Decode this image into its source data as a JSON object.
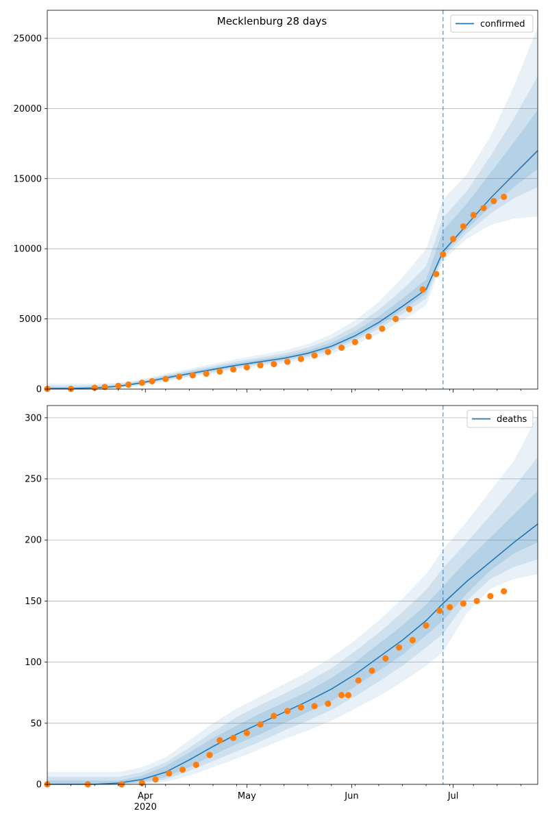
{
  "figure": {
    "title": "Mecklenburg 28 days"
  },
  "colors": {
    "model": "#1f77b4",
    "observed": "#ff7f0e",
    "band": "#1f77b4",
    "forecast_line": "#1f77b4",
    "grid": "#b0b0b0"
  },
  "chart_data": [
    {
      "type": "line",
      "name": "confirmed",
      "title": "Mecklenburg 28 days",
      "xlabel": "",
      "ylabel": "",
      "x_range": [
        "2020-03-03",
        "2020-07-26"
      ],
      "ylim": [
        0,
        27000
      ],
      "y_ticks": [
        0,
        5000,
        10000,
        15000,
        20000,
        25000
      ],
      "y_tick_labels": [
        "0",
        "5000",
        "10000",
        "15000",
        "20000",
        "25000"
      ],
      "x_tick_labels": [
        "Apr",
        "May",
        "Jun",
        "Jul"
      ],
      "x_tick_dates": [
        "2020-04-01",
        "2020-05-01",
        "2020-06-01",
        "2020-07-01"
      ],
      "year_label": "2020",
      "grid": "horizontal",
      "legend": {
        "position": "top-right",
        "label": "confirmed"
      },
      "forecast_start": "2020-06-28",
      "model_median": {
        "x": [
          "2020-03-03",
          "2020-03-10",
          "2020-03-17",
          "2020-03-24",
          "2020-03-31",
          "2020-04-07",
          "2020-04-14",
          "2020-04-21",
          "2020-04-28",
          "2020-05-05",
          "2020-05-12",
          "2020-05-19",
          "2020-05-26",
          "2020-06-02",
          "2020-06-09",
          "2020-06-16",
          "2020-06-23",
          "2020-06-28",
          "2020-07-05",
          "2020-07-12",
          "2020-07-19",
          "2020-07-26"
        ],
        "y": [
          40,
          50,
          80,
          200,
          450,
          800,
          1100,
          1400,
          1700,
          1950,
          2200,
          2550,
          3050,
          3800,
          4750,
          5900,
          7100,
          9800,
          11700,
          13600,
          15300,
          17000
        ]
      },
      "bands": [
        {
          "level": "outer",
          "lower": [
            0,
            0,
            0,
            60,
            250,
            550,
            850,
            1100,
            1400,
            1650,
            1850,
            2100,
            2500,
            3150,
            3950,
            4900,
            5950,
            9150,
            10700,
            11700,
            12150,
            12300
          ],
          "upper": [
            400,
            400,
            400,
            450,
            700,
            1100,
            1450,
            1800,
            2150,
            2450,
            2750,
            3200,
            3900,
            4900,
            6200,
            7950,
            10000,
            13500,
            15300,
            18000,
            21600,
            25800
          ]
        },
        {
          "level": "middle",
          "lower": [
            0,
            0,
            10,
            110,
            320,
            630,
            930,
            1200,
            1500,
            1750,
            1990,
            2290,
            2720,
            3440,
            4300,
            5350,
            6450,
            9400,
            11100,
            12500,
            13600,
            14400
          ],
          "upper": [
            250,
            260,
            290,
            350,
            620,
            1000,
            1330,
            1650,
            1980,
            2250,
            2540,
            2960,
            3580,
            4480,
            5650,
            7100,
            8750,
            12200,
            14100,
            16600,
            19300,
            22300
          ]
        },
        {
          "level": "inner",
          "lower": [
            0,
            10,
            40,
            150,
            380,
            700,
            1000,
            1290,
            1590,
            1840,
            2080,
            2410,
            2880,
            3620,
            4520,
            5630,
            6800,
            9600,
            11400,
            13000,
            14400,
            15700
          ],
          "upper": [
            130,
            140,
            180,
            280,
            550,
            920,
            1240,
            1540,
            1850,
            2110,
            2380,
            2760,
            3310,
            4130,
            5180,
            6450,
            7800,
            11300,
            13200,
            15400,
            17600,
            19900
          ]
        }
      ],
      "observed": {
        "x": [
          "2020-03-03",
          "2020-03-10",
          "2020-03-17",
          "2020-03-20",
          "2020-03-24",
          "2020-03-27",
          "2020-03-31",
          "2020-04-03",
          "2020-04-07",
          "2020-04-11",
          "2020-04-15",
          "2020-04-19",
          "2020-04-23",
          "2020-04-27",
          "2020-05-01",
          "2020-05-05",
          "2020-05-09",
          "2020-05-13",
          "2020-05-17",
          "2020-05-21",
          "2020-05-25",
          "2020-05-29",
          "2020-06-02",
          "2020-06-06",
          "2020-06-10",
          "2020-06-14",
          "2020-06-18",
          "2020-06-22",
          "2020-06-26",
          "2020-06-28",
          "2020-07-01",
          "2020-07-04",
          "2020-07-07",
          "2020-07-10",
          "2020-07-13",
          "2020-07-16"
        ],
        "y": [
          10,
          20,
          90,
          150,
          230,
          320,
          450,
          560,
          720,
          880,
          980,
          1100,
          1250,
          1400,
          1550,
          1700,
          1780,
          1950,
          2150,
          2400,
          2650,
          2950,
          3350,
          3750,
          4300,
          5000,
          5700,
          7100,
          8200,
          9600,
          10700,
          11600,
          12400,
          12900,
          13400,
          13700
        ]
      }
    },
    {
      "type": "line",
      "name": "deaths",
      "xlabel": "",
      "ylabel": "",
      "x_range": [
        "2020-03-03",
        "2020-07-26"
      ],
      "ylim": [
        0,
        310
      ],
      "y_ticks": [
        0,
        50,
        100,
        150,
        200,
        250,
        300
      ],
      "y_tick_labels": [
        "0",
        "50",
        "100",
        "150",
        "200",
        "250",
        "300"
      ],
      "x_tick_labels": [
        "Apr",
        "May",
        "Jun",
        "Jul"
      ],
      "x_tick_dates": [
        "2020-04-01",
        "2020-05-01",
        "2020-06-01",
        "2020-07-01"
      ],
      "year_label": "2020",
      "grid": "horizontal",
      "legend": {
        "position": "top-right",
        "label": "deaths"
      },
      "forecast_start": "2020-06-28",
      "model_median": {
        "x": [
          "2020-03-03",
          "2020-03-10",
          "2020-03-17",
          "2020-03-24",
          "2020-03-31",
          "2020-04-07",
          "2020-04-14",
          "2020-04-21",
          "2020-04-28",
          "2020-05-05",
          "2020-05-12",
          "2020-05-19",
          "2020-05-26",
          "2020-06-02",
          "2020-06-09",
          "2020-06-16",
          "2020-06-23",
          "2020-06-28",
          "2020-07-05",
          "2020-07-12",
          "2020-07-19",
          "2020-07-26"
        ],
        "y": [
          0,
          0,
          0,
          1,
          4,
          10,
          20,
          31,
          41,
          50,
          59,
          68,
          78,
          90,
          104,
          118,
          134,
          148,
          166,
          182,
          198,
          213
        ]
      },
      "bands": [
        {
          "level": "outer",
          "lower": [
            0,
            0,
            0,
            0,
            0,
            2,
            7,
            14,
            21,
            29,
            37,
            44,
            52,
            62,
            72,
            84,
            97,
            108,
            140,
            160,
            168,
            172
          ],
          "upper": [
            10,
            10,
            10,
            10,
            14,
            22,
            36,
            50,
            62,
            72,
            82,
            92,
            104,
            118,
            134,
            152,
            172,
            192,
            215,
            240,
            265,
            302
          ]
        },
        {
          "level": "middle",
          "lower": [
            0,
            0,
            0,
            0,
            1,
            4,
            11,
            19,
            27,
            35,
            44,
            52,
            61,
            72,
            84,
            97,
            112,
            123,
            150,
            168,
            178,
            184
          ],
          "upper": [
            6,
            6,
            6,
            6,
            10,
            18,
            30,
            43,
            55,
            65,
            74,
            84,
            95,
            109,
            124,
            141,
            159,
            177,
            198,
            220,
            243,
            268
          ]
        },
        {
          "level": "inner",
          "lower": [
            0,
            0,
            0,
            0,
            2,
            6,
            14,
            24,
            33,
            41,
            50,
            59,
            68,
            80,
            93,
            106,
            122,
            134,
            156,
            175,
            189,
            198
          ],
          "upper": [
            3,
            3,
            3,
            3,
            7,
            15,
            26,
            38,
            48,
            58,
            67,
            76,
            87,
            100,
            115,
            130,
            147,
            162,
            183,
            202,
            221,
            240
          ]
        }
      ],
      "observed": {
        "x": [
          "2020-03-03",
          "2020-03-15",
          "2020-03-25",
          "2020-03-31",
          "2020-04-04",
          "2020-04-08",
          "2020-04-12",
          "2020-04-16",
          "2020-04-20",
          "2020-04-23",
          "2020-04-27",
          "2020-05-01",
          "2020-05-05",
          "2020-05-09",
          "2020-05-13",
          "2020-05-17",
          "2020-05-21",
          "2020-05-25",
          "2020-05-29",
          "2020-05-31",
          "2020-06-03",
          "2020-06-07",
          "2020-06-11",
          "2020-06-15",
          "2020-06-19",
          "2020-06-23",
          "2020-06-27",
          "2020-06-30",
          "2020-07-04",
          "2020-07-08",
          "2020-07-12",
          "2020-07-16"
        ],
        "y": [
          0,
          0,
          0,
          1,
          4,
          9,
          12,
          16,
          24,
          36,
          38,
          42,
          49,
          56,
          60,
          63,
          64,
          66,
          73,
          73,
          85,
          93,
          103,
          112,
          118,
          130,
          142,
          145,
          148,
          150,
          154,
          158
        ]
      }
    }
  ]
}
